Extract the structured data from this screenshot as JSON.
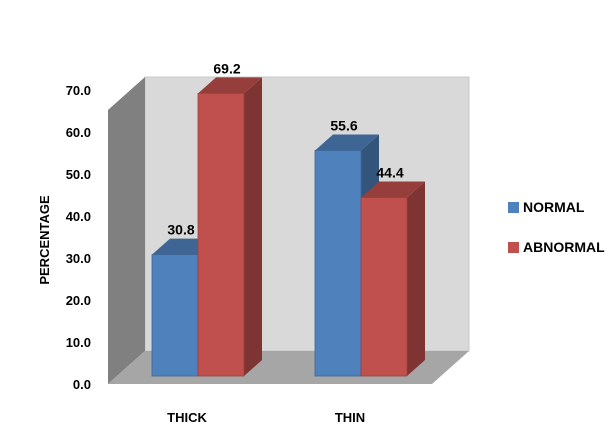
{
  "chart_data": {
    "type": "bar",
    "title": "",
    "xlabel": "",
    "ylabel": "PERCENTAGE",
    "categories": [
      "THICK",
      "THIN"
    ],
    "series": [
      {
        "name": "NORMAL",
        "values": [
          30.8,
          55.6
        ],
        "color": "#4f81bd"
      },
      {
        "name": "ABNORMAL",
        "values": [
          69.2,
          44.4
        ],
        "color": "#c0504d"
      }
    ],
    "ylim": [
      0,
      70
    ],
    "yticks": [
      "0.0",
      "10.0",
      "20.0",
      "30.0",
      "40.0",
      "50.0",
      "60.0",
      "70.0"
    ],
    "grid": false,
    "legend": "right",
    "style": "3d"
  }
}
